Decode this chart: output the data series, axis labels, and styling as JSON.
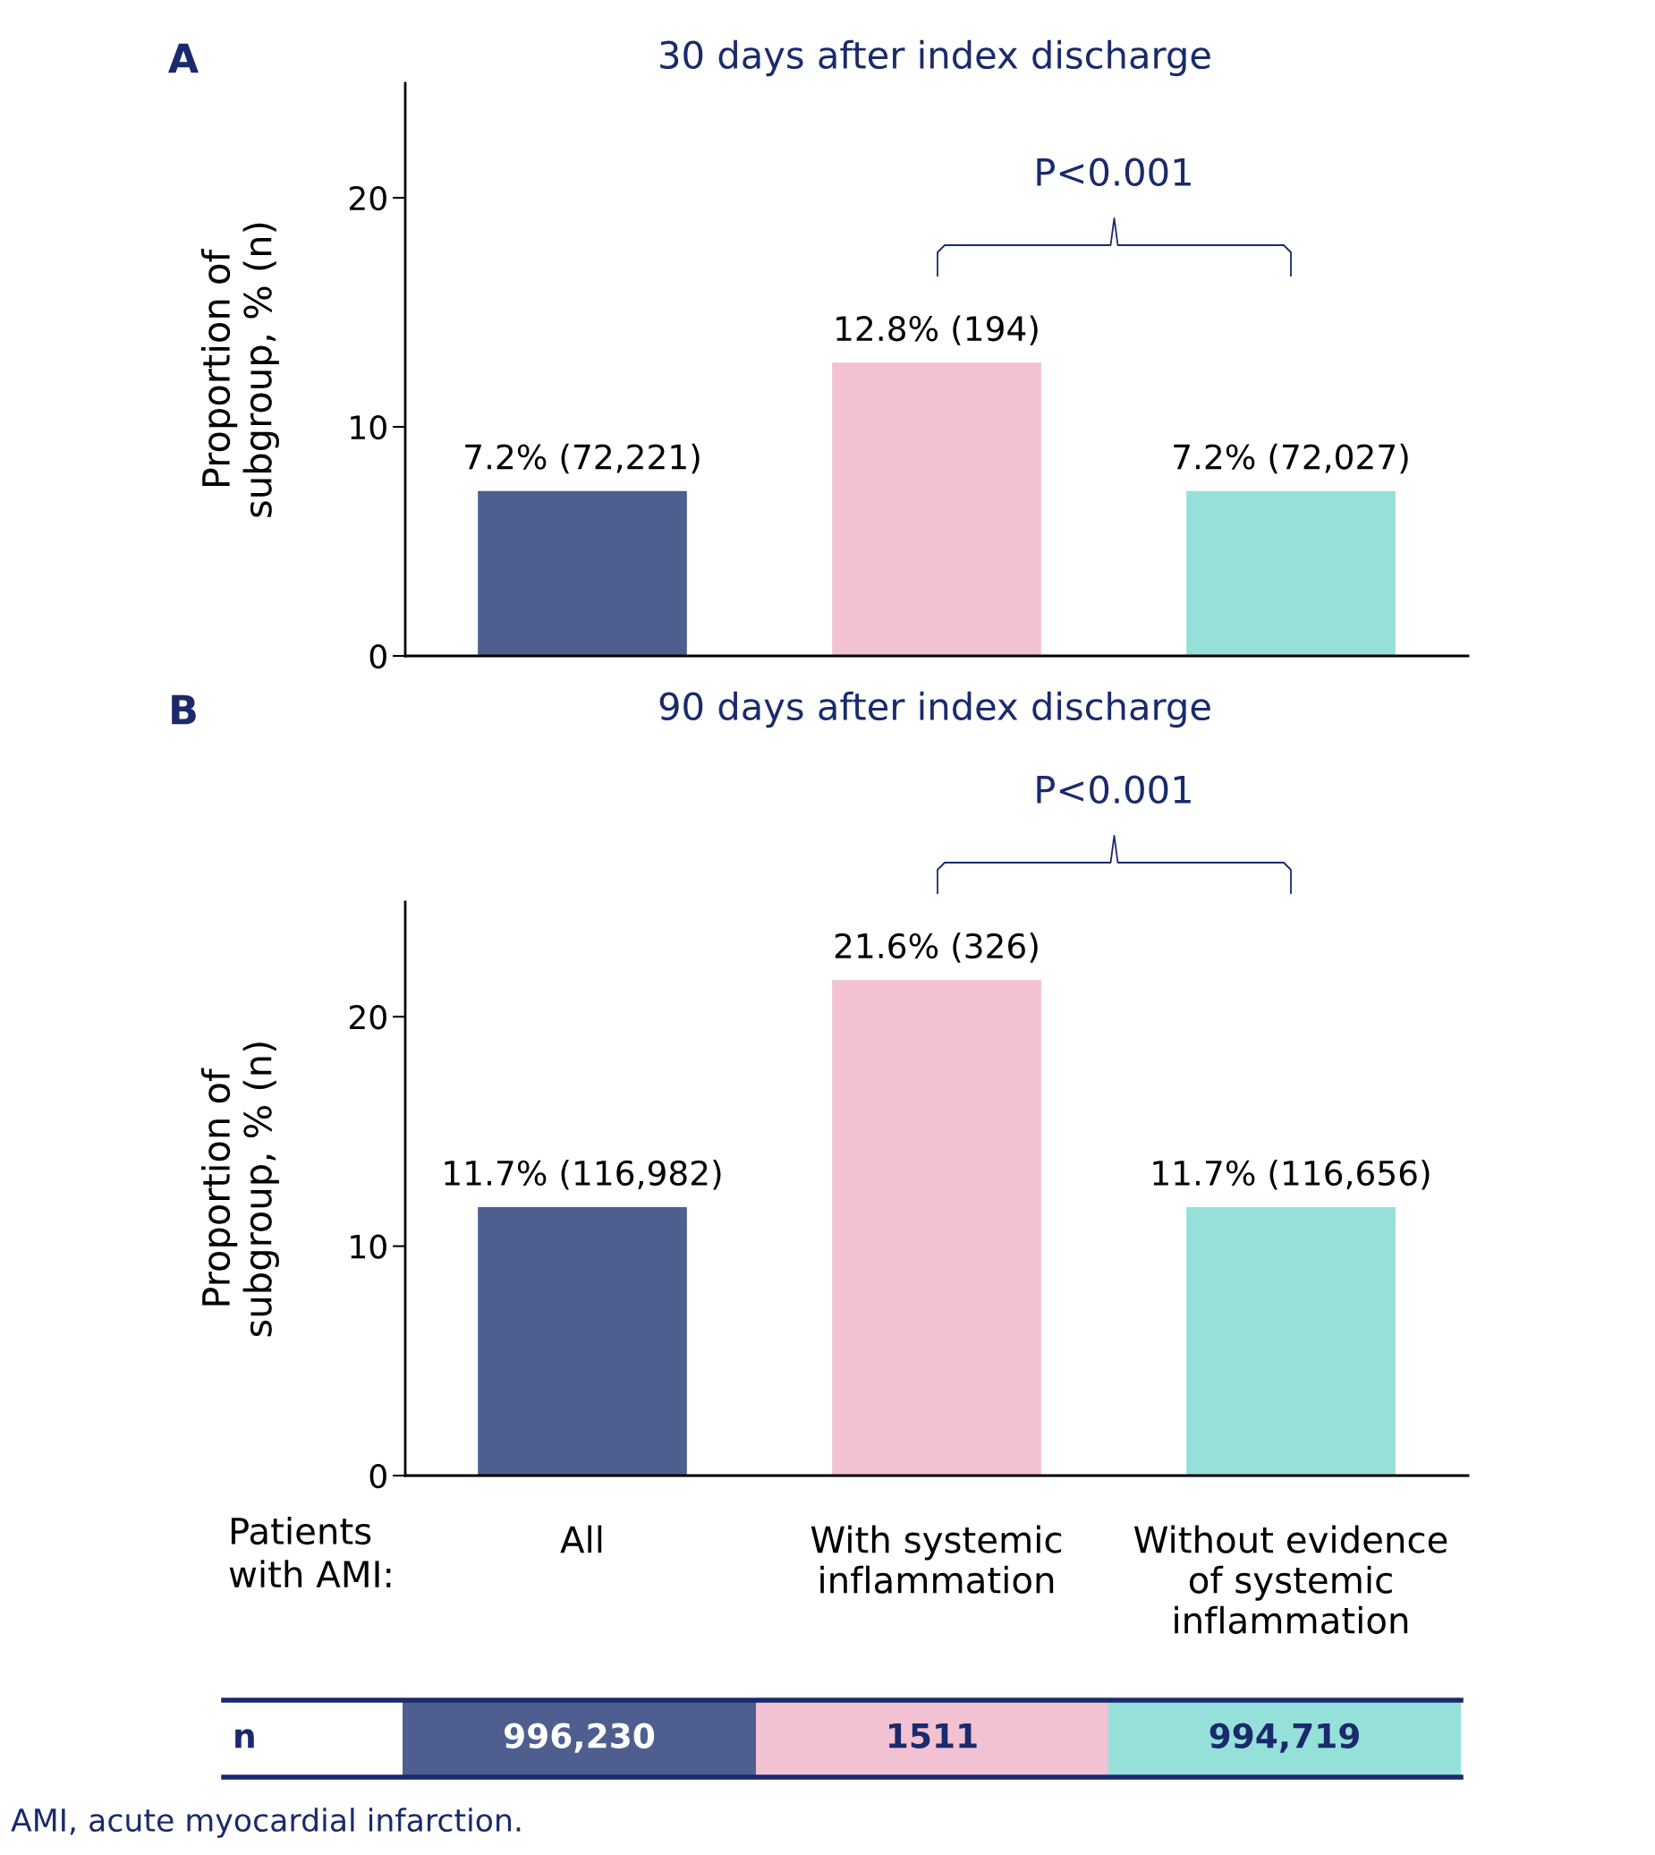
{
  "chart_data": [
    {
      "type": "bar",
      "title": "30 days after index discharge",
      "ylabel": "Proportion of\nsubgroup, % (n)",
      "categories": [
        null,
        null,
        null
      ],
      "values": [
        7.2,
        12.8,
        7.2
      ],
      "colors": [
        "#4e5f8f",
        "#f2c1d2",
        "#96e0da"
      ],
      "value_labels": [
        "7.2% (72,221)",
        "12.8% (194)",
        "7.2% (72,027)"
      ],
      "ylim": [
        0,
        25
      ],
      "yticks": [
        0,
        10,
        20
      ],
      "grid": false,
      "legend": false,
      "tick_labels": "y",
      "annotations": [
        "A",
        "P<0.001"
      ]
    },
    {
      "type": "bar",
      "title": "90 days after index discharge",
      "ylabel": "Proportion of\nsubgroup, % (n)",
      "categories": [
        "All",
        "With systemic\ninflammation",
        "Without evidence\nof systemic\ninflammation"
      ],
      "values": [
        11.7,
        21.6,
        11.7
      ],
      "colors": [
        "#4e5f8f",
        "#f2c1d2",
        "#96e0da"
      ],
      "value_labels": [
        "11.7% (116,982)",
        "21.6% (326)",
        "11.7% (116,656)"
      ],
      "ylim": [
        0,
        25
      ],
      "yticks": [
        0,
        10,
        20
      ],
      "grid": false,
      "legend": false,
      "annotations": [
        "B",
        "P<0.001",
        "Patients\nwith AMI:",
        "n",
        "996,230",
        "1511",
        "994,719",
        "AMI, acute myocardial infarction."
      ]
    }
  ]
}
